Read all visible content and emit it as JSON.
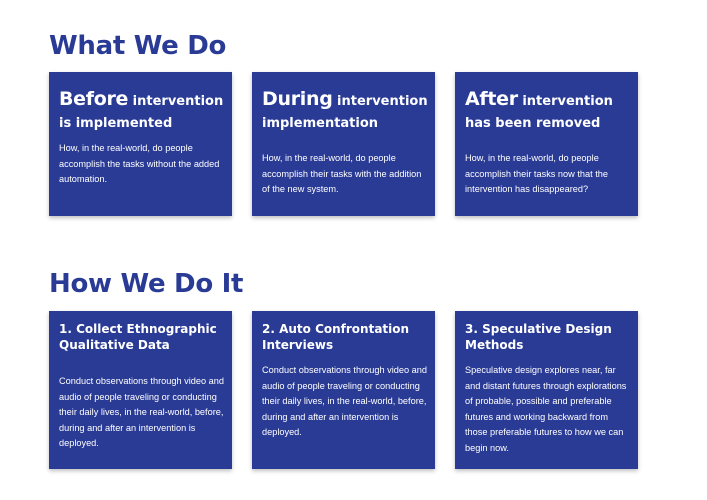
{
  "colors": {
    "brand": "#2a3b96",
    "card_text": "#ffffff",
    "background": "#ffffff"
  },
  "what_we_do": {
    "title": "What We Do",
    "cards": [
      {
        "lead": "Before",
        "rest": " intervention is implemented",
        "body": "How, in the real-world, do people accomplish the tasks without the added automation."
      },
      {
        "lead": "During",
        "rest": " intervention implementation",
        "body": "How, in the real-world, do people accomplish their tasks with the addition of the new system."
      },
      {
        "lead": "After",
        "rest": " intervention has been removed",
        "body": "How, in the real-world, do people accomplish their tasks now that the intervention has disappeared?"
      }
    ]
  },
  "how_we_do_it": {
    "title": "How We Do It",
    "cards": [
      {
        "heading": "1. Collect Ethnographic Qualitative Data",
        "body": "Conduct observations through video and audio of people traveling or conducting their daily lives, in the real-world, before, during and after an intervention is deployed."
      },
      {
        "heading": "2. Auto Confrontation Interviews",
        "body": "Conduct observations through video and audio of people traveling or conducting their daily lives, in the real-world, before, during and after an intervention is deployed."
      },
      {
        "heading": "3. Speculative Design Methods",
        "body": "Speculative design explores near, far and distant futures through explorations of probable, possible and preferable futures and working backward from those preferable futures to how we can begin now."
      }
    ]
  }
}
